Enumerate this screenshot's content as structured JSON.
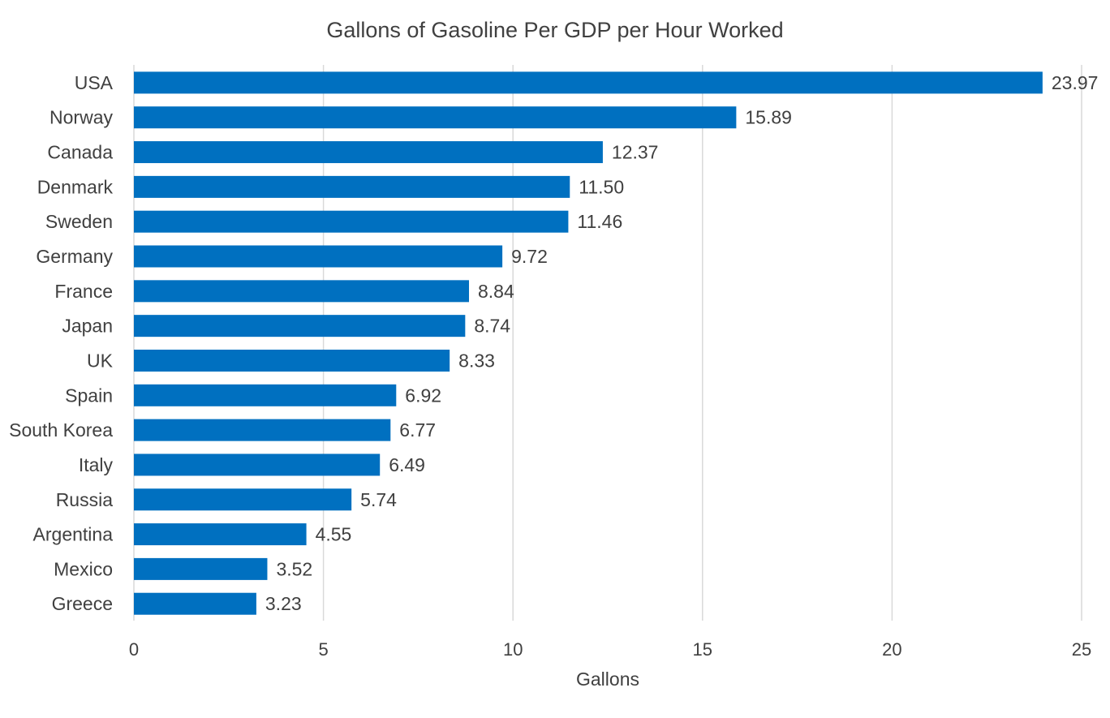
{
  "chart_data": {
    "type": "bar",
    "orientation": "horizontal",
    "title": "Gallons of Gasoline Per GDP per Hour Worked",
    "xlabel": "Gallons",
    "ylabel": "",
    "xlim": [
      0,
      25
    ],
    "xticks": [
      0,
      5,
      10,
      15,
      20,
      25
    ],
    "grid": "vertical",
    "legend": "none",
    "bar_color": "#0070c0",
    "categories": [
      "USA",
      "Norway",
      "Canada",
      "Denmark",
      "Sweden",
      "Germany",
      "France",
      "Japan",
      "UK",
      "Spain",
      "South Korea",
      "Italy",
      "Russia",
      "Argentina",
      "Mexico",
      "Greece"
    ],
    "values": [
      23.97,
      15.89,
      12.37,
      11.5,
      11.46,
      9.72,
      8.84,
      8.74,
      8.33,
      6.92,
      6.77,
      6.49,
      5.74,
      4.55,
      3.52,
      3.23
    ],
    "value_labels": [
      "23.97",
      "15.89",
      "12.37",
      "11.50",
      "11.46",
      "9.72",
      "8.84",
      "8.74",
      "8.33",
      "6.92",
      "6.77",
      "6.49",
      "5.74",
      "4.55",
      "3.52",
      "3.23"
    ]
  }
}
